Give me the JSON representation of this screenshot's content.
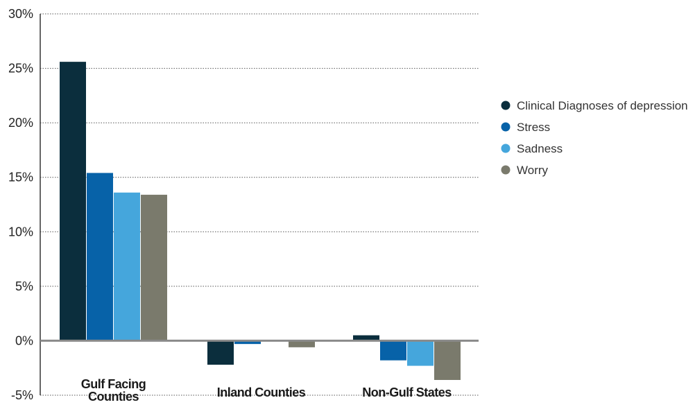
{
  "chart_data": {
    "type": "bar",
    "categories": [
      [
        "Gulf Facing",
        "Counties"
      ],
      [
        "Inland Counties"
      ],
      [
        "Non-Gulf States"
      ]
    ],
    "series": [
      {
        "name": "Clinical Diagnoses of depression",
        "color": "#0b2e3d",
        "values": [
          25.6,
          -2.2,
          0.5
        ]
      },
      {
        "name": "Stress",
        "color": "#0762a8",
        "values": [
          15.4,
          -0.3,
          -1.8
        ]
      },
      {
        "name": "Sadness",
        "color": "#45a6dc",
        "values": [
          13.6,
          0.0,
          -2.3
        ]
      },
      {
        "name": "Worry",
        "color": "#7a7a6c",
        "values": [
          13.4,
          -0.6,
          -3.6
        ]
      }
    ],
    "yticks": [
      "30%",
      "25%",
      "20%",
      "15%",
      "10%",
      "5%",
      "0%",
      "-5%"
    ],
    "ytick_values": [
      30,
      25,
      20,
      15,
      10,
      5,
      0,
      -5
    ],
    "ylim": [
      -5,
      30
    ],
    "grid": true,
    "legend_position": "right"
  }
}
